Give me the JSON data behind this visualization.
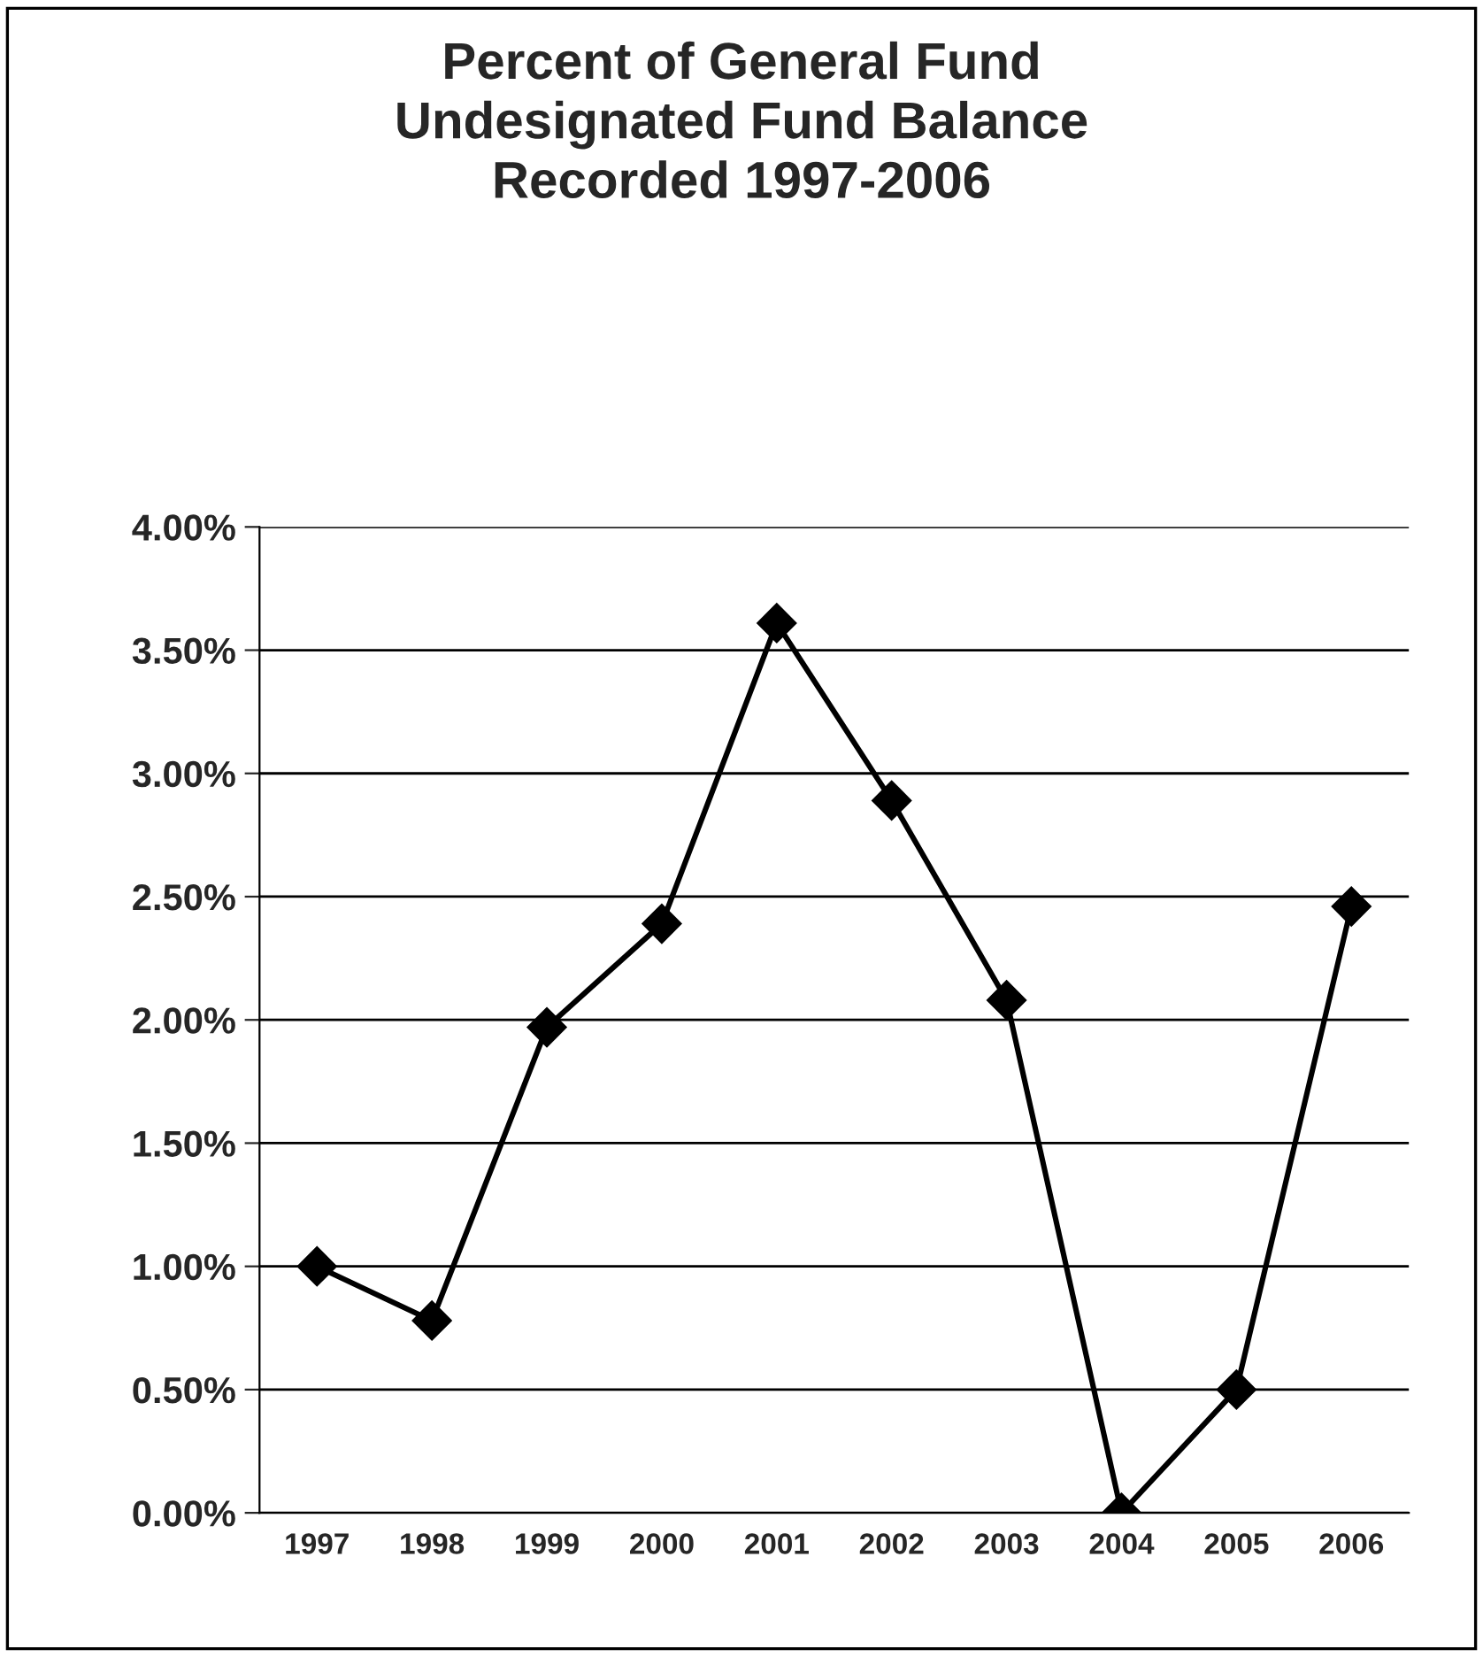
{
  "chart_data": {
    "type": "line",
    "title": "Percent of General Fund\nUndesignated Fund Balance\nRecorded 1997-2006",
    "categories": [
      "1997",
      "1998",
      "1999",
      "2000",
      "2001",
      "2002",
      "2003",
      "2004",
      "2005",
      "2006"
    ],
    "series": [
      {
        "color": "#000000",
        "values": [
          1.0,
          0.78,
          1.97,
          2.39,
          3.61,
          2.89,
          2.08,
          0.0,
          0.5,
          2.46
        ]
      }
    ],
    "ylim": [
      0,
      4
    ],
    "yticks": [
      {
        "value": 0,
        "label": "0.00%"
      },
      {
        "value": 0.5,
        "label": "0.50%"
      },
      {
        "value": 1,
        "label": "1.00%"
      },
      {
        "value": 1.5,
        "label": "1.50%"
      },
      {
        "value": 2,
        "label": "2.00%"
      },
      {
        "value": 2.5,
        "label": "2.50%"
      },
      {
        "value": 3,
        "label": "3.00%"
      },
      {
        "value": 3.5,
        "label": "3.50%"
      },
      {
        "value": 4,
        "label": "4.00%"
      }
    ],
    "grid": "y",
    "marker": "diamond",
    "line_style": "solid",
    "legend": false
  }
}
